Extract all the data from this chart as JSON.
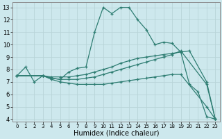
{
  "xlabel": "Humidex (Indice chaleur)",
  "xlim": [
    -0.5,
    23.5
  ],
  "ylim": [
    3.8,
    13.4
  ],
  "xticks": [
    0,
    1,
    2,
    3,
    4,
    5,
    6,
    7,
    8,
    9,
    10,
    11,
    12,
    13,
    14,
    15,
    16,
    17,
    18,
    19,
    20,
    21,
    22,
    23
  ],
  "yticks": [
    4,
    5,
    6,
    7,
    8,
    9,
    10,
    11,
    12,
    13
  ],
  "bg_color": "#cde8ed",
  "line_color": "#2e7d72",
  "grid_color": "#b8d4d8",
  "lines": [
    {
      "x": [
        0,
        1,
        2,
        3,
        4,
        5,
        6,
        7,
        8,
        9,
        10,
        11,
        12,
        13,
        14,
        15,
        16,
        17,
        18,
        19,
        20,
        21,
        22,
        23
      ],
      "y": [
        7.5,
        8.2,
        7.0,
        7.5,
        7.3,
        7.2,
        7.8,
        8.1,
        8.2,
        11.0,
        13.0,
        12.5,
        13.0,
        13.0,
        12.0,
        11.2,
        10.0,
        10.2,
        10.1,
        9.4,
        6.8,
        6.2,
        4.2,
        4.0
      ]
    },
    {
      "x": [
        0,
        3,
        4,
        5,
        6,
        7,
        8,
        9,
        10,
        11,
        12,
        13,
        14,
        15,
        16,
        17,
        18,
        19,
        20,
        22,
        23
      ],
      "y": [
        7.5,
        7.5,
        7.4,
        7.4,
        7.4,
        7.5,
        7.6,
        7.8,
        8.0,
        8.2,
        8.5,
        8.7,
        8.9,
        9.0,
        9.1,
        9.2,
        9.3,
        9.4,
        9.5,
        7.0,
        4.0
      ]
    },
    {
      "x": [
        0,
        3,
        4,
        5,
        6,
        7,
        8,
        9,
        10,
        11,
        12,
        13,
        14,
        15,
        16,
        17,
        18,
        19,
        22,
        23
      ],
      "y": [
        7.5,
        7.5,
        7.3,
        7.2,
        7.2,
        7.2,
        7.3,
        7.4,
        7.6,
        7.8,
        8.0,
        8.2,
        8.4,
        8.6,
        8.8,
        9.0,
        9.2,
        9.5,
        6.8,
        4.0
      ]
    },
    {
      "x": [
        0,
        3,
        4,
        5,
        6,
        7,
        8,
        9,
        10,
        11,
        12,
        13,
        14,
        15,
        16,
        17,
        18,
        19,
        22,
        23
      ],
      "y": [
        7.5,
        7.5,
        7.2,
        7.0,
        6.9,
        6.8,
        6.8,
        6.8,
        6.8,
        6.9,
        7.0,
        7.1,
        7.2,
        7.3,
        7.4,
        7.5,
        7.6,
        7.6,
        5.0,
        4.0
      ]
    }
  ]
}
